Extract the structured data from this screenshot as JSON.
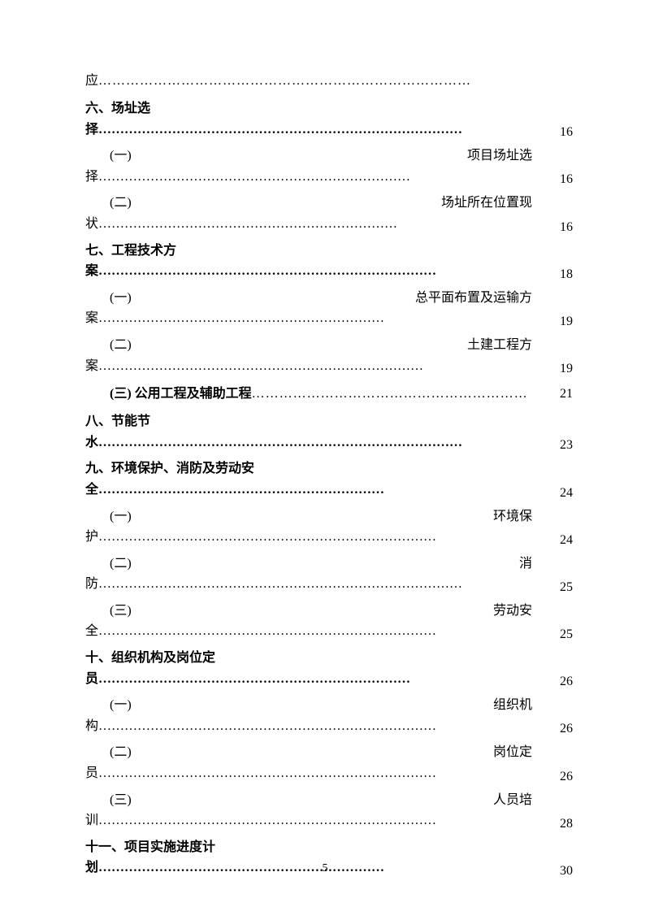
{
  "page_number": "5",
  "colors": {
    "text": "#000000",
    "background": "#ffffff"
  },
  "typography": {
    "font_family": "SimSun",
    "body_fontsize": 16,
    "page_number_fontsize": 14
  },
  "entries": [
    {
      "type": "continuation",
      "text": "应",
      "leader": "………………………………………………………………………",
      "page": ""
    },
    {
      "type": "main",
      "line1": "六、场址选",
      "line2_char": "择",
      "leader": "…………………………………………………………………………",
      "page": "16",
      "bold": true
    },
    {
      "type": "sub",
      "marker": "(一)",
      "right_text": "项目场址选",
      "line2_char": "择",
      "leader": "………………………………………………………………",
      "page": "16"
    },
    {
      "type": "sub",
      "marker": "(二)",
      "right_text": "场址所在位置现",
      "line2_char": "状",
      "leader": "……………………………………………………………",
      "page": "16"
    },
    {
      "type": "main",
      "line1": "七、工程技术方",
      "line2_char": "案",
      "leader": "……………………………………………………………………",
      "page": "18",
      "bold": true
    },
    {
      "type": "sub",
      "marker": "(一)",
      "right_text": "总平面布置及运输方",
      "line2_char": "案",
      "leader": "…………………………………………………………",
      "page": "19"
    },
    {
      "type": "sub",
      "marker": "(二)",
      "right_text": "土建工程方",
      "line2_char": "案",
      "leader": "…………………………………………………………………",
      "page": "19"
    },
    {
      "type": "single",
      "text": "(三) 公用工程及辅助工程",
      "leader": "……………………………………………………",
      "page": "21",
      "indent": true,
      "bold": true
    },
    {
      "type": "main",
      "line1": "八、节能节",
      "line2_char": "水",
      "leader": "…………………………………………………………………………",
      "page": "23",
      "bold": true
    },
    {
      "type": "main",
      "line1": "九、环境保护、消防及劳动安",
      "line2_char": "全",
      "leader": "…………………………………………………………",
      "page": "24",
      "bold": true
    },
    {
      "type": "sub",
      "marker": "(一)",
      "right_text": "环境保",
      "line2_char": "护",
      "leader": "……………………………………………………………………",
      "page": "24"
    },
    {
      "type": "sub",
      "marker": "(二)",
      "right_text": "消",
      "line2_char": "防",
      "leader": "…………………………………………………………………………",
      "page": "25"
    },
    {
      "type": "sub",
      "marker": "(三)",
      "right_text": "劳动安",
      "line2_char": "全",
      "leader": "……………………………………………………………………",
      "page": "25"
    },
    {
      "type": "main",
      "line1": "十、组织机构及岗位定",
      "line2_char": "员",
      "leader": "………………………………………………………………",
      "page": "26",
      "bold": true
    },
    {
      "type": "sub",
      "marker": "(一)",
      "right_text": "组织机",
      "line2_char": "构",
      "leader": "……………………………………………………………………",
      "page": "26"
    },
    {
      "type": "sub",
      "marker": "(二)",
      "right_text": "岗位定",
      "line2_char": "员",
      "leader": "……………………………………………………………………",
      "page": "26"
    },
    {
      "type": "sub",
      "marker": "(三)",
      "right_text": "人员培",
      "line2_char": "训",
      "leader": "……………………………………………………………………",
      "page": "28"
    },
    {
      "type": "main",
      "line1": "十一、项目实施进度计",
      "line2_char": "划",
      "leader": "…………………………………………………………",
      "page": "30",
      "bold": true
    }
  ]
}
